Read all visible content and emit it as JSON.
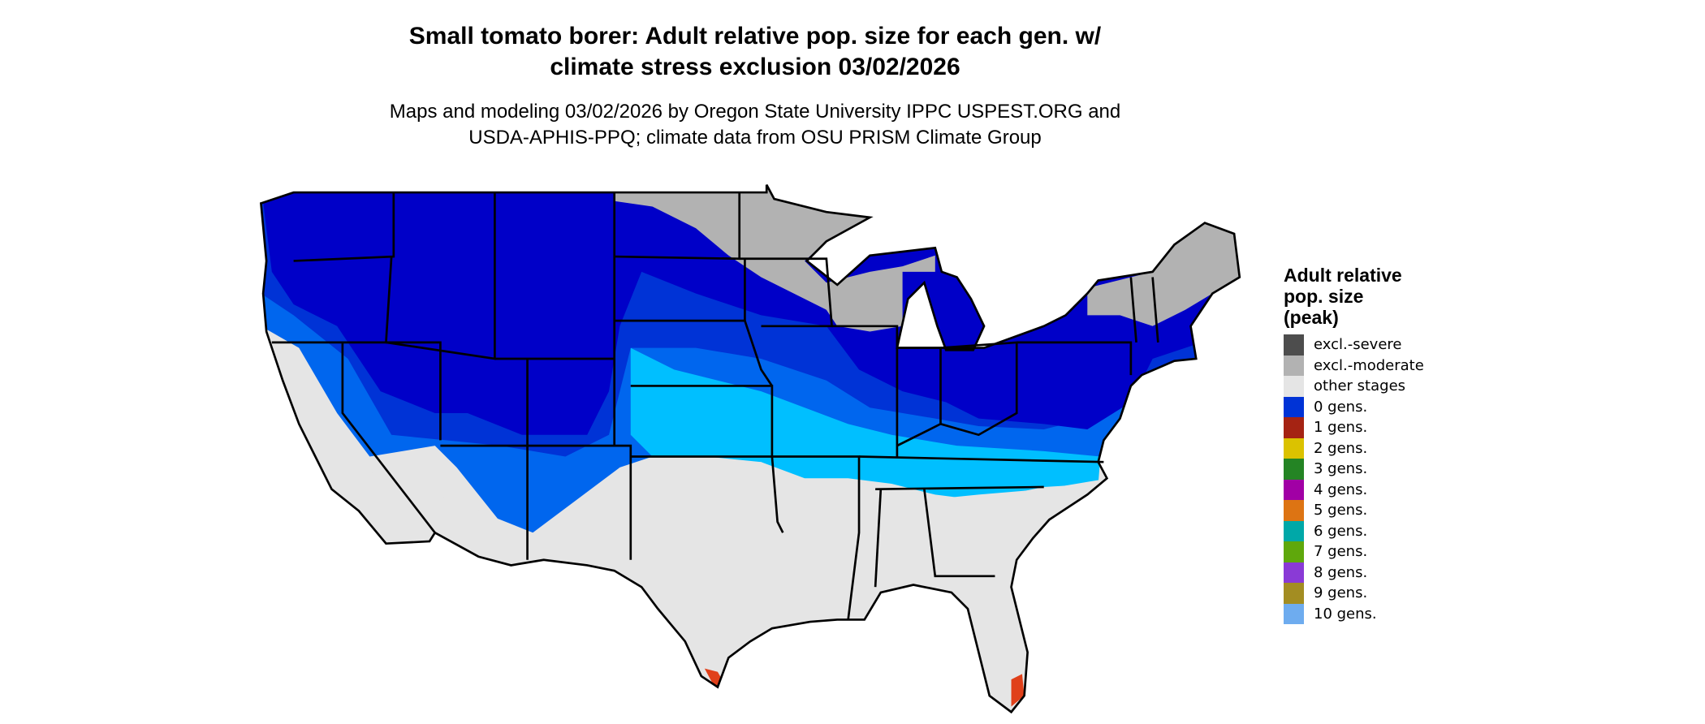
{
  "title": [
    "Small tomato borer: Adult relative pop. size for each gen. w/",
    "climate stress exclusion 03/02/2026"
  ],
  "subtitle": [
    "Maps and modeling 03/02/2026 by Oregon State University IPPC USPEST.ORG and",
    "USDA-APHIS-PPQ; climate data from OSU PRISM Climate Group"
  ],
  "map": {
    "region": "contiguous United States",
    "colors": {
      "deep_blue": "#0000c8",
      "mid_blue": "#0033d6",
      "light_blue": "#0066ee",
      "cyan": "#00bfff",
      "other_stages": "#e5e5e5",
      "excl_moderate": "#b2b2b2",
      "hotspot": "#e0401a",
      "border": "#000000"
    }
  },
  "legend": {
    "title": [
      "Adult relative",
      "pop. size",
      "(peak)"
    ],
    "items": [
      {
        "label": "excl.-severe",
        "color": "#4d4d4d"
      },
      {
        "label": "excl.-moderate",
        "color": "#b2b2b2"
      },
      {
        "label": "other stages",
        "color": "#e5e5e5"
      },
      {
        "label": "0 gens.",
        "color": "#0033d6"
      },
      {
        "label": "1 gens.",
        "color": "#a52313"
      },
      {
        "label": "2 gens.",
        "color": "#dbc200"
      },
      {
        "label": "3 gens.",
        "color": "#248424"
      },
      {
        "label": "4 gens.",
        "color": "#a100a5"
      },
      {
        "label": "5 gens.",
        "color": "#dd7413"
      },
      {
        "label": "6 gens.",
        "color": "#00a8a8"
      },
      {
        "label": "7 gens.",
        "color": "#5fa80c"
      },
      {
        "label": "8 gens.",
        "color": "#8a3ad6"
      },
      {
        "label": "9 gens.",
        "color": "#a38d22"
      },
      {
        "label": "10 gens.",
        "color": "#6eacef"
      }
    ]
  }
}
